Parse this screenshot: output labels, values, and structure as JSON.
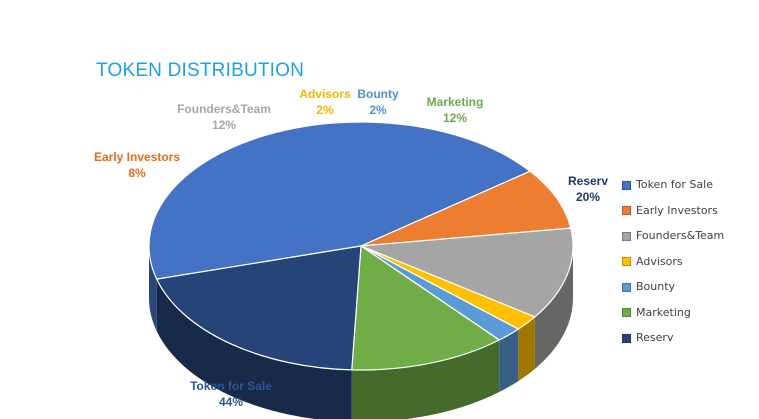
{
  "title": "TOKEN DISTRIBUTION",
  "chart_data": {
    "type": "pie",
    "title": "TOKEN DISTRIBUTION",
    "slices": [
      {
        "label": "Token for Sale",
        "value": 44,
        "display": "44%",
        "color": "#4472c4",
        "label_color": "#2e5597"
      },
      {
        "label": "Early Investors",
        "value": 8,
        "display": "8%",
        "color": "#ed7d31",
        "label_color": "#e26b1e"
      },
      {
        "label": "Founders&Team",
        "value": 12,
        "display": "12%",
        "color": "#a5a5a5",
        "label_color": "#a6a6a6"
      },
      {
        "label": "Advisors",
        "value": 2,
        "display": "2%",
        "color": "#ffc000",
        "label_color": "#f4b400"
      },
      {
        "label": "Bounty",
        "value": 2,
        "display": "2%",
        "color": "#5b9bd5",
        "label_color": "#4f8fcb"
      },
      {
        "label": "Marketing",
        "value": 12,
        "display": "12%",
        "color": "#70ad47",
        "label_color": "#6aa84f"
      },
      {
        "label": "Reserv",
        "value": 20,
        "display": "20%",
        "color": "#264478",
        "label_color": "#1f3864"
      }
    ],
    "legend_position": "right",
    "style": "3d"
  }
}
